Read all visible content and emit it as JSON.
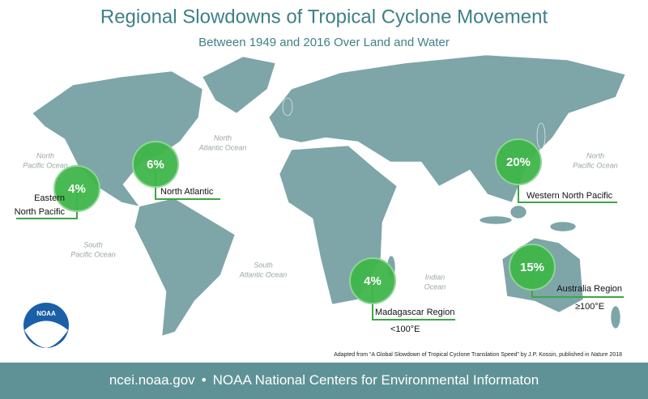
{
  "header": {
    "title": "Regional Slowdowns of Tropical Cyclone Movement",
    "subtitle": "Between 1949 and 2016 Over Land and Water"
  },
  "oceans": [
    {
      "lines": [
        "North",
        "Pacific Ocean"
      ]
    },
    {
      "lines": [
        "North",
        "Atlantic Ocean"
      ]
    },
    {
      "lines": [
        "North",
        "Pacific Ocean"
      ]
    },
    {
      "lines": [
        "South",
        "Pacific Ocean"
      ]
    },
    {
      "lines": [
        "South",
        "Atlantic Ocean"
      ]
    },
    {
      "lines": [
        "Indian",
        "Ocean"
      ]
    }
  ],
  "regions": [
    {
      "percent": "4%",
      "label": [
        "Eastern",
        "North Pacific"
      ]
    },
    {
      "percent": "6%",
      "label": [
        "North Atlantic"
      ]
    },
    {
      "percent": "20%",
      "label": [
        "Western North Pacific"
      ]
    },
    {
      "percent": "4%",
      "label": [
        "Madagascar Region",
        "<100°E"
      ]
    },
    {
      "percent": "15%",
      "label": [
        "Australia Region",
        "≥100°E"
      ]
    }
  ],
  "credit": {
    "before": "Adapted from “A Global Slowdown of Tropical Cyclone Translation Speed” by J.P. Kossin, published in ",
    "italic": "Nature",
    "after": " 2018"
  },
  "footer": {
    "site": "ncei.noaa.gov",
    "separator": "•",
    "org": "NOAA National Centers for Environmental Informaton"
  },
  "logo": "NOAA"
}
